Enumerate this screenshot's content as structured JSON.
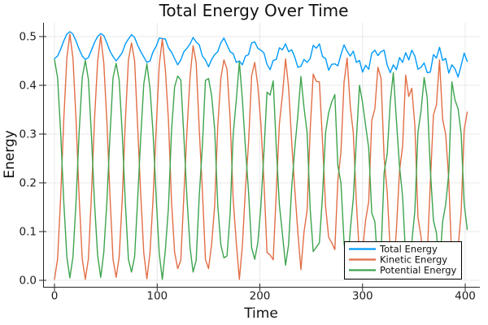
{
  "figure": {
    "title": "Total Energy Over Time",
    "xlabel": "Time",
    "ylabel": "Energy",
    "background": "#ffffff"
  },
  "chart_data": {
    "type": "line",
    "title": "Total Energy Over Time",
    "xlabel": "Time",
    "ylabel": "Energy",
    "grid": true,
    "grid_color": "#e8e8e8",
    "axis_color": "#262626",
    "legend_position": "bottom-right",
    "xlim": [
      -11,
      414
    ],
    "ylim": [
      -0.013,
      0.528
    ],
    "x_ticks": [
      0,
      100,
      200,
      300,
      400
    ],
    "x_tick_labels": [
      "0",
      "100",
      "200",
      "300",
      "400"
    ],
    "y_ticks": [
      0.0,
      0.1,
      0.2,
      0.3,
      0.4,
      0.5
    ],
    "y_tick_labels": [
      "0.0",
      "0.1",
      "0.2",
      "0.3",
      "0.4",
      "0.5"
    ],
    "x": {
      "start": 0,
      "step": 3,
      "count": 135
    },
    "series": [
      {
        "name": "Total Energy",
        "color": "#009af9",
        "values": [
          0.455,
          0.46,
          0.474,
          0.491,
          0.505,
          0.51,
          0.505,
          0.491,
          0.474,
          0.46,
          0.453,
          0.457,
          0.472,
          0.488,
          0.5,
          0.506,
          0.502,
          0.487,
          0.47,
          0.459,
          0.45,
          0.458,
          0.467,
          0.485,
          0.495,
          0.504,
          0.498,
          0.482,
          0.469,
          0.458,
          0.447,
          0.45,
          0.469,
          0.48,
          0.497,
          0.496,
          0.495,
          0.477,
          0.468,
          0.455,
          0.442,
          0.452,
          0.469,
          0.476,
          0.485,
          0.498,
          0.489,
          0.483,
          0.46,
          0.452,
          0.438,
          0.453,
          0.463,
          0.469,
          0.487,
          0.497,
          0.483,
          0.469,
          0.465,
          0.447,
          0.45,
          0.442,
          0.46,
          0.463,
          0.487,
          0.489,
          0.476,
          0.472,
          0.466,
          0.443,
          0.432,
          0.451,
          0.453,
          0.477,
          0.473,
          0.485,
          0.469,
          0.473,
          0.458,
          0.437,
          0.439,
          0.453,
          0.447,
          0.455,
          0.482,
          0.476,
          0.485,
          0.459,
          0.455,
          0.431,
          0.443,
          0.444,
          0.44,
          0.463,
          0.483,
          0.47,
          0.46,
          0.47,
          0.447,
          0.451,
          0.427,
          0.441,
          0.433,
          0.466,
          0.472,
          0.461,
          0.469,
          0.472,
          0.441,
          0.426,
          0.442,
          0.432,
          0.457,
          0.447,
          0.467,
          0.452,
          0.472,
          0.46,
          0.433,
          0.437,
          0.446,
          0.426,
          0.427,
          0.463,
          0.456,
          0.478,
          0.451,
          0.455,
          0.425,
          0.442,
          0.434,
          0.417,
          0.441,
          0.466,
          0.449
        ]
      },
      {
        "name": "Kinetic Energy",
        "color": "#e26e46",
        "values": [
          0.002,
          0.044,
          0.171,
          0.329,
          0.456,
          0.505,
          0.456,
          0.329,
          0.171,
          0.044,
          0.002,
          0.044,
          0.174,
          0.33,
          0.448,
          0.501,
          0.446,
          0.326,
          0.174,
          0.043,
          0.006,
          0.047,
          0.166,
          0.326,
          0.452,
          0.487,
          0.45,
          0.314,
          0.174,
          0.056,
          0.003,
          0.056,
          0.167,
          0.31,
          0.442,
          0.495,
          0.432,
          0.329,
          0.161,
          0.057,
          0.024,
          0.041,
          0.175,
          0.307,
          0.418,
          0.481,
          0.447,
          0.309,
          0.186,
          0.043,
          0.024,
          0.074,
          0.152,
          0.314,
          0.414,
          0.452,
          0.433,
          0.333,
          0.166,
          0.078,
          0.002,
          0.071,
          0.188,
          0.282,
          0.42,
          0.447,
          0.399,
          0.32,
          0.2,
          0.057,
          0.052,
          0.042,
          0.181,
          0.321,
          0.38,
          0.454,
          0.397,
          0.285,
          0.188,
          0.099,
          0.022,
          0.099,
          0.144,
          0.309,
          0.423,
          0.408,
          0.407,
          0.286,
          0.152,
          0.088,
          0.077,
          0.063,
          0.205,
          0.263,
          0.406,
          0.456,
          0.358,
          0.302,
          0.158,
          0.05,
          0.062,
          0.123,
          0.161,
          0.328,
          0.352,
          0.437,
          0.414,
          0.251,
          0.18,
          0.06,
          0.016,
          0.104,
          0.224,
          0.275,
          0.421,
          0.377,
          0.394,
          0.317,
          0.129,
          0.089,
          0.03,
          0.052,
          0.2,
          0.339,
          0.36,
          0.452,
          0.331,
          0.299,
          0.205,
          0.035,
          0.064,
          0.066,
          0.14,
          0.309,
          0.345
        ]
      },
      {
        "name": "Potential Energy",
        "color": "#3da44d",
        "values": [
          0.453,
          0.416,
          0.303,
          0.162,
          0.048,
          0.005,
          0.048,
          0.162,
          0.303,
          0.416,
          0.451,
          0.412,
          0.298,
          0.159,
          0.052,
          0.006,
          0.057,
          0.161,
          0.296,
          0.416,
          0.445,
          0.411,
          0.301,
          0.159,
          0.043,
          0.017,
          0.048,
          0.168,
          0.295,
          0.403,
          0.444,
          0.394,
          0.302,
          0.171,
          0.055,
          0.002,
          0.062,
          0.149,
          0.307,
          0.397,
          0.419,
          0.411,
          0.294,
          0.168,
          0.067,
          0.017,
          0.041,
          0.174,
          0.274,
          0.41,
          0.414,
          0.379,
          0.311,
          0.155,
          0.073,
          0.046,
          0.05,
          0.135,
          0.299,
          0.369,
          0.448,
          0.371,
          0.271,
          0.181,
          0.067,
          0.043,
          0.077,
          0.153,
          0.266,
          0.386,
          0.38,
          0.409,
          0.272,
          0.155,
          0.094,
          0.031,
          0.073,
          0.189,
          0.27,
          0.338,
          0.418,
          0.354,
          0.303,
          0.146,
          0.059,
          0.068,
          0.077,
          0.173,
          0.303,
          0.344,
          0.366,
          0.381,
          0.235,
          0.2,
          0.078,
          0.013,
          0.102,
          0.168,
          0.289,
          0.4,
          0.364,
          0.318,
          0.272,
          0.138,
          0.12,
          0.024,
          0.055,
          0.221,
          0.26,
          0.365,
          0.426,
          0.328,
          0.234,
          0.172,
          0.046,
          0.075,
          0.078,
          0.143,
          0.304,
          0.348,
          0.416,
          0.374,
          0.227,
          0.123,
          0.097,
          0.026,
          0.12,
          0.156,
          0.22,
          0.407,
          0.37,
          0.352,
          0.301,
          0.157,
          0.104
        ]
      }
    ]
  }
}
